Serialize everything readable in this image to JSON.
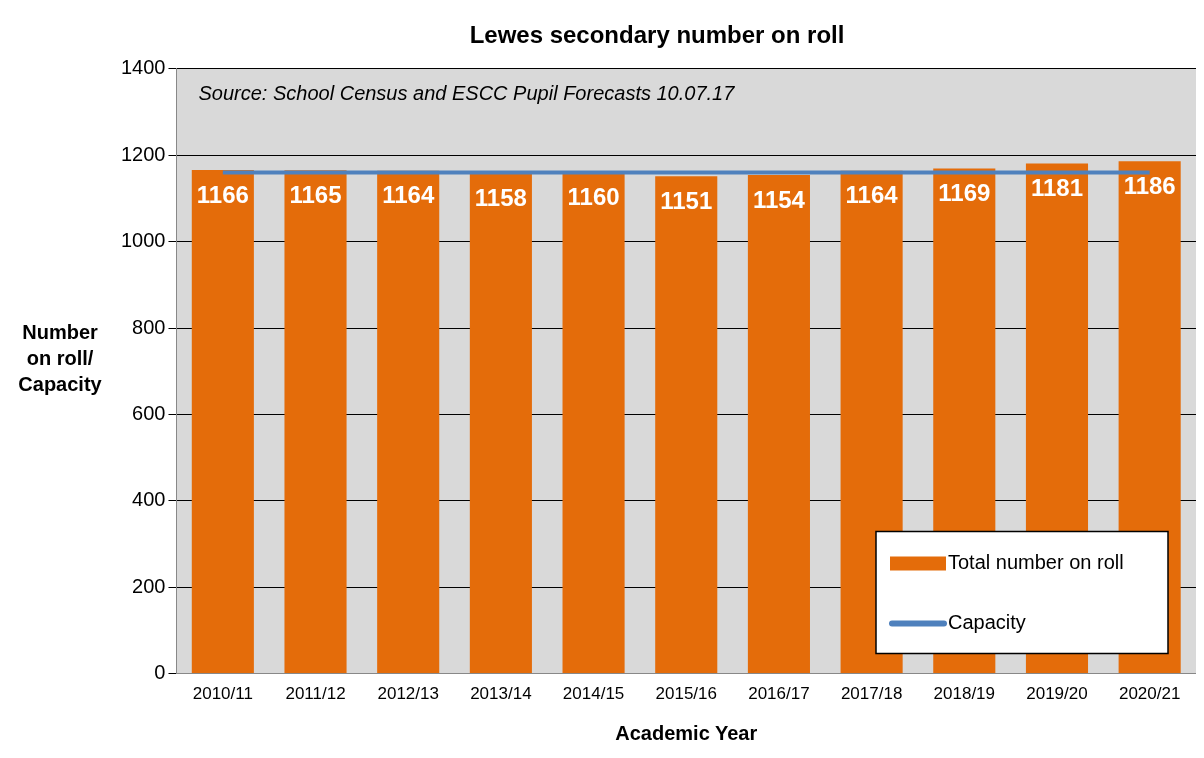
{
  "chart_data": {
    "type": "bar",
    "title": "Lewes secondary number on roll",
    "xlabel": "Academic Year",
    "ylabel": "Number on roll/ Capacity",
    "categories": [
      "2010/11",
      "2011/12",
      "2012/13",
      "2013/14",
      "2014/15",
      "2015/16",
      "2016/17",
      "2017/18",
      "2018/19",
      "2019/20",
      "2020/21"
    ],
    "series": [
      {
        "name": "Total number on roll",
        "color": "#e46c0a",
        "values": [
          1166,
          1165,
          1164,
          1158,
          1160,
          1151,
          1154,
          1164,
          1169,
          1181,
          1186
        ],
        "value_labels": [
          "1166",
          "1165",
          "1164",
          "1158",
          "1160",
          "1151",
          "1154",
          "1164",
          "1169",
          "1181",
          "1186"
        ]
      },
      {
        "name": "Capacity",
        "type": "line",
        "color": "#4f81bd",
        "values": [
          1160,
          1160,
          1160,
          1160,
          1160,
          1160,
          1160,
          1160,
          1160,
          1160,
          1160
        ]
      }
    ],
    "ylim": [
      0,
      1400
    ],
    "yticks": [
      0,
      200,
      400,
      600,
      800,
      1000,
      1200,
      1400
    ],
    "grid": "y",
    "legend": "bottom right",
    "marker": "none",
    "line_style": "solid",
    "annotations": [
      "Source: School Census and ESCC Pupil Forecasts 10.07.17"
    ]
  }
}
